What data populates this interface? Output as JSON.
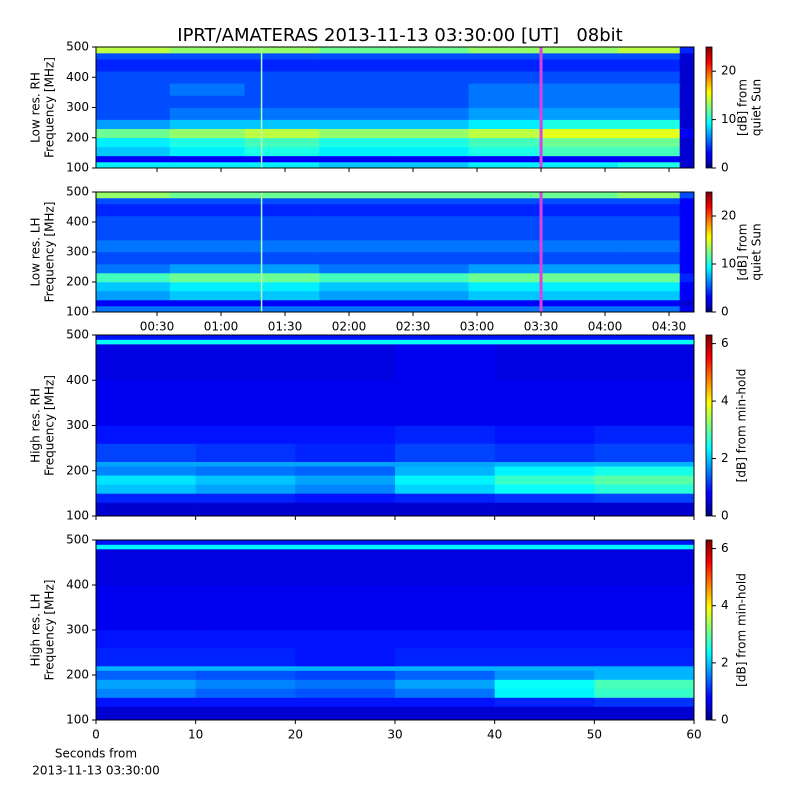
{
  "chart_data": [
    {
      "type": "heatmap",
      "title": "IPRT/AMATERAS 2013-11-13 03:30:00 [UT]   08bit",
      "ylabel": [
        "Low res. RH",
        "Frequency [MHz]"
      ],
      "colorbar_label": [
        "[dB] from",
        "quiet Sun"
      ],
      "xlim": [
        1.4,
        281.7
      ],
      "ylim": [
        100,
        500
      ],
      "yticks": [
        100,
        200,
        300,
        400,
        500
      ],
      "clim": [
        0,
        25
      ],
      "cticks": [
        0,
        10,
        20
      ],
      "x_edges": [
        1.4,
        36,
        71,
        106,
        141,
        176,
        211,
        246,
        275,
        281.7
      ],
      "y_edges": [
        100,
        120,
        140,
        170,
        200,
        230,
        260,
        300,
        340,
        380,
        420,
        460,
        480,
        500
      ],
      "z": [
        [
          9,
          9,
          9,
          8,
          8,
          9,
          9,
          10,
          2
        ],
        [
          3,
          3,
          3,
          3,
          3,
          3,
          3,
          3,
          2
        ],
        [
          8,
          9,
          10,
          9,
          9,
          10,
          11,
          11,
          2
        ],
        [
          9,
          10,
          11,
          10,
          10,
          11,
          12,
          12,
          2
        ],
        [
          12,
          13,
          14,
          13,
          13,
          14,
          15,
          15,
          3
        ],
        [
          7,
          8,
          8,
          8,
          8,
          9,
          10,
          10,
          2
        ],
        [
          5,
          6,
          6,
          6,
          6,
          7,
          7,
          7,
          2
        ],
        [
          5,
          5,
          5,
          5,
          5,
          6,
          6,
          6,
          2
        ],
        [
          5,
          6,
          5,
          5,
          5,
          6,
          6,
          6,
          2
        ],
        [
          5,
          5,
          5,
          5,
          5,
          5,
          5,
          5,
          2
        ],
        [
          4,
          4,
          4,
          4,
          4,
          4,
          4,
          4,
          2
        ],
        [
          5,
          5,
          5,
          5,
          5,
          5,
          5,
          5,
          2
        ],
        [
          14,
          13,
          13,
          12,
          12,
          13,
          13,
          14,
          4
        ]
      ],
      "vlines": [
        {
          "x": 79,
          "color": "#b0ffb0"
        },
        {
          "x": 210,
          "color": "#e040e0"
        }
      ]
    },
    {
      "type": "heatmap",
      "ylabel": [
        "Low res. LH",
        "Frequency [MHz]"
      ],
      "colorbar_label": [
        "[dB] from",
        "quiet Sun"
      ],
      "xlim": [
        1.4,
        281.7
      ],
      "ylim": [
        100,
        500
      ],
      "yticks": [
        100,
        200,
        300,
        400,
        500
      ],
      "xticks": [
        {
          "value": 30,
          "label": "00:30"
        },
        {
          "value": 60,
          "label": "01:00"
        },
        {
          "value": 90,
          "label": "01:30"
        },
        {
          "value": 120,
          "label": "02:00"
        },
        {
          "value": 150,
          "label": "02:30"
        },
        {
          "value": 180,
          "label": "03:00"
        },
        {
          "value": 210,
          "label": "03:30"
        },
        {
          "value": 240,
          "label": "04:00"
        },
        {
          "value": 270,
          "label": "04:30"
        }
      ],
      "clim": [
        0,
        25
      ],
      "cticks": [
        0,
        10,
        20
      ],
      "x_edges": [
        1.4,
        36,
        71,
        106,
        141,
        176,
        211,
        246,
        275,
        281.7
      ],
      "y_edges": [
        100,
        120,
        140,
        170,
        200,
        230,
        260,
        300,
        340,
        380,
        420,
        460,
        480,
        500
      ],
      "z": [
        [
          6,
          6,
          6,
          6,
          6,
          6,
          6,
          6,
          3
        ],
        [
          3,
          3,
          3,
          3,
          3,
          3,
          3,
          3,
          2
        ],
        [
          7,
          8,
          8,
          7,
          7,
          8,
          8,
          8,
          3
        ],
        [
          8,
          9,
          9,
          8,
          8,
          9,
          9,
          9,
          3
        ],
        [
          11,
          12,
          12,
          11,
          11,
          12,
          12,
          12,
          4
        ],
        [
          6,
          7,
          7,
          6,
          6,
          7,
          7,
          7,
          3
        ],
        [
          5,
          5,
          5,
          5,
          5,
          5,
          5,
          5,
          3
        ],
        [
          6,
          6,
          6,
          6,
          6,
          6,
          6,
          6,
          3
        ],
        [
          5,
          5,
          5,
          5,
          5,
          5,
          5,
          5,
          3
        ],
        [
          5,
          5,
          5,
          5,
          5,
          5,
          5,
          5,
          3
        ],
        [
          4,
          4,
          4,
          4,
          4,
          4,
          4,
          4,
          3
        ],
        [
          5,
          5,
          5,
          5,
          5,
          5,
          5,
          5,
          3
        ],
        [
          13,
          12,
          12,
          12,
          12,
          12,
          12,
          13,
          5
        ]
      ],
      "vlines": [
        {
          "x": 79,
          "color": "#b0ffb0"
        },
        {
          "x": 210,
          "color": "#e040e0"
        }
      ]
    },
    {
      "type": "heatmap",
      "ylabel": [
        "High res. RH",
        "Frequency [MHz]"
      ],
      "colorbar_label": [
        "[dB] from min-hold"
      ],
      "xlim": [
        0,
        60
      ],
      "ylim": [
        100,
        500
      ],
      "yticks": [
        100,
        200,
        300,
        400,
        500
      ],
      "clim": [
        0,
        6.3
      ],
      "cticks": [
        0,
        2,
        4,
        6
      ],
      "x_edges": [
        0,
        10,
        20,
        30,
        40,
        50,
        60
      ],
      "y_edges": [
        100,
        130,
        150,
        170,
        190,
        210,
        220,
        260,
        300,
        400,
        480,
        490,
        500
      ],
      "z": [
        [
          0.5,
          0.5,
          0.5,
          0.5,
          0.5,
          0.5
        ],
        [
          1.0,
          1.0,
          0.9,
          1.0,
          1.1,
          1.2
        ],
        [
          2.0,
          1.8,
          1.6,
          2.1,
          2.4,
          2.6
        ],
        [
          2.2,
          2.0,
          1.8,
          2.3,
          2.7,
          2.9
        ],
        [
          1.6,
          1.5,
          1.4,
          1.9,
          2.3,
          2.5
        ],
        [
          1.8,
          1.8,
          1.8,
          1.8,
          1.9,
          1.9
        ],
        [
          1.2,
          1.1,
          1.0,
          1.2,
          1.1,
          1.2
        ],
        [
          0.9,
          0.9,
          0.9,
          1.0,
          0.9,
          1.0
        ],
        [
          0.7,
          0.7,
          0.7,
          0.7,
          0.7,
          0.7
        ],
        [
          0.6,
          0.6,
          0.6,
          0.7,
          0.6,
          0.6
        ],
        [
          2.4,
          2.4,
          2.4,
          2.4,
          2.4,
          2.4
        ],
        [
          0.9,
          0.9,
          0.9,
          0.9,
          0.9,
          0.9
        ]
      ]
    },
    {
      "type": "heatmap",
      "ylabel": [
        "High res. LH",
        "Frequency [MHz]"
      ],
      "colorbar_label": [
        "[dB] from min-hold"
      ],
      "xlabel": [
        "Seconds from",
        "2013-11-13 03:30:00"
      ],
      "xlim": [
        0,
        60
      ],
      "ylim": [
        100,
        500
      ],
      "yticks": [
        100,
        200,
        300,
        400,
        500
      ],
      "xticks": [
        0,
        10,
        20,
        30,
        40,
        50,
        60
      ],
      "clim": [
        0,
        6.3
      ],
      "cticks": [
        0,
        2,
        4,
        6
      ],
      "x_edges": [
        0,
        10,
        20,
        30,
        40,
        50,
        60
      ],
      "y_edges": [
        100,
        130,
        150,
        170,
        190,
        210,
        220,
        260,
        300,
        400,
        480,
        490,
        500
      ],
      "z": [
        [
          0.5,
          0.5,
          0.5,
          0.5,
          0.5,
          0.5
        ],
        [
          0.9,
          0.9,
          0.9,
          0.9,
          1.0,
          1.1
        ],
        [
          1.6,
          1.4,
          1.3,
          1.5,
          2.3,
          2.7
        ],
        [
          1.8,
          1.6,
          1.5,
          1.8,
          2.4,
          2.8
        ],
        [
          1.4,
          1.3,
          1.2,
          1.4,
          1.7,
          1.9
        ],
        [
          1.9,
          1.9,
          1.9,
          1.9,
          1.9,
          1.9
        ],
        [
          1.0,
          1.0,
          0.9,
          1.0,
          1.0,
          1.0
        ],
        [
          0.9,
          0.9,
          0.9,
          0.9,
          0.9,
          0.9
        ],
        [
          0.7,
          0.7,
          0.7,
          0.7,
          0.7,
          0.7
        ],
        [
          0.6,
          0.6,
          0.6,
          0.6,
          0.6,
          0.6
        ],
        [
          2.3,
          2.3,
          2.3,
          2.3,
          2.3,
          2.3
        ],
        [
          0.9,
          0.9,
          0.9,
          0.9,
          0.9,
          0.9
        ]
      ]
    }
  ]
}
